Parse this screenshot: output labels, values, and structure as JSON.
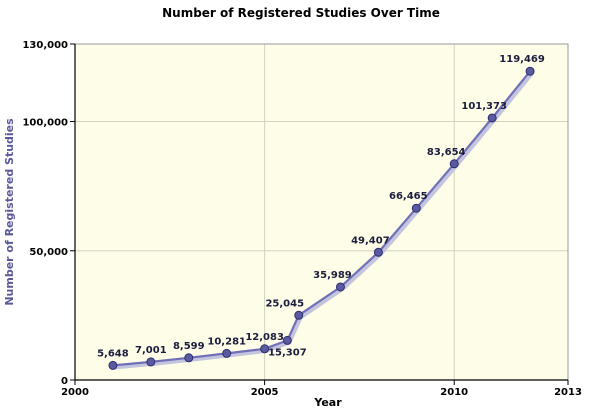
{
  "chart_data": {
    "type": "line",
    "title": "Number of Registered Studies Over Time",
    "xlabel": "Year",
    "ylabel": "Number of Registered Studies",
    "xlim": [
      2000,
      2013
    ],
    "ylim": [
      0,
      130000
    ],
    "x_ticks": [
      2000,
      2005,
      2010,
      2013
    ],
    "x_tick_labels": [
      "2000",
      "2005",
      "2010",
      "2013"
    ],
    "y_ticks": [
      0,
      50000,
      100000,
      130000
    ],
    "y_tick_labels": [
      "0",
      "50,000",
      "100,000",
      "130,000"
    ],
    "grid": true,
    "legend": "none",
    "series": [
      {
        "x": [
          2001,
          2002,
          2003,
          2004,
          2005,
          2005.6,
          2005.9,
          2007,
          2008,
          2009,
          2010,
          2011,
          2012
        ],
        "values": [
          5648,
          7001,
          8599,
          10281,
          12083,
          15307,
          25045,
          35989,
          49407,
          66465,
          83654,
          101373,
          119469
        ],
        "labels": [
          "5,648",
          "7,001",
          "8,599",
          "10,281",
          "12,083",
          "15,307",
          "25,045",
          "35,989",
          "49,407",
          "66,465",
          "83,654",
          "101,373",
          "119,469"
        ]
      }
    ],
    "colors": {
      "plot_background": "#fdfde8",
      "line": "#7070b8",
      "line_shadow": "#c4c4de",
      "marker_fill": "#5a5aa0",
      "marker_stroke": "#2e2e6e",
      "grid": "#d2d2c0",
      "frame": "#999999"
    }
  }
}
